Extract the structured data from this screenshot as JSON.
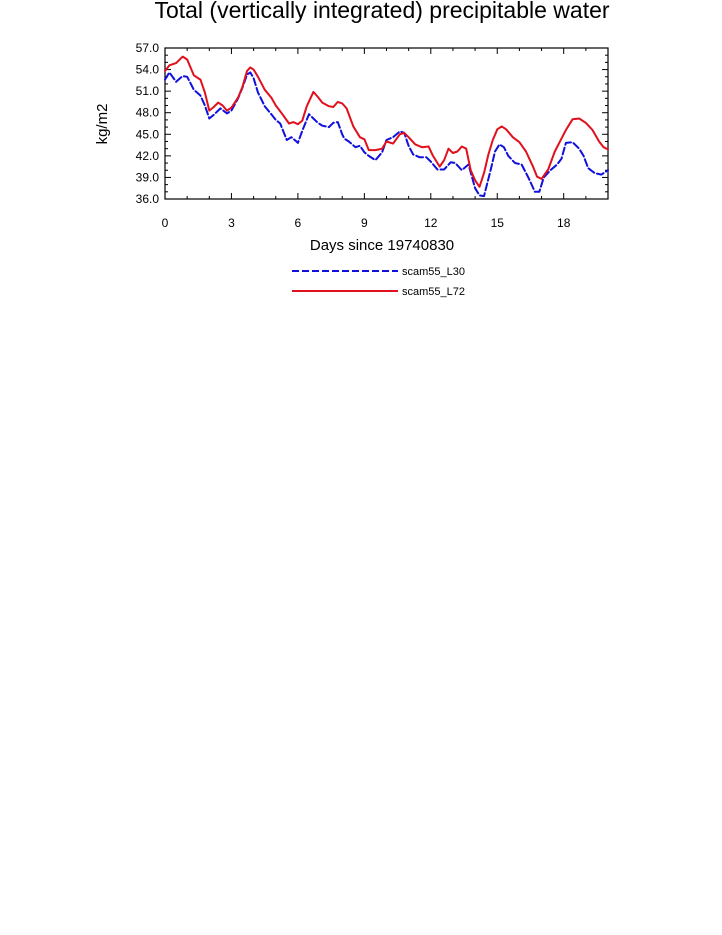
{
  "chart_data": {
    "type": "line",
    "title": "Total (vertically integrated) precipitable water",
    "xlabel": "Days since 19740830",
    "ylabel": "kg/m2",
    "xlim": [
      0,
      20
    ],
    "ylim": [
      36.0,
      57.0
    ],
    "x_ticks": [
      0,
      3,
      6,
      9,
      12,
      15,
      18
    ],
    "x_tick_labels": [
      "0",
      "3",
      "6",
      "9",
      "12",
      "15",
      "18"
    ],
    "y_ticks": [
      36.0,
      39.0,
      42.0,
      45.0,
      48.0,
      51.0,
      54.0,
      57.0
    ],
    "y_tick_labels": [
      "36.0",
      "39.0",
      "42.0",
      "45.0",
      "48.0",
      "51.0",
      "54.0",
      "57.0"
    ],
    "grid": false,
    "legend_position": "bottom-center",
    "series": [
      {
        "name": "scam55_L30",
        "color": "#1010dd",
        "dash": "dashed",
        "x": [
          0,
          0.2,
          0.5,
          0.8,
          1.0,
          1.3,
          1.6,
          1.8,
          2.0,
          2.2,
          2.5,
          2.8,
          3.0,
          3.3,
          3.5,
          3.7,
          3.85,
          4.0,
          4.2,
          4.5,
          4.8,
          5.0,
          5.2,
          5.5,
          5.7,
          5.9,
          6.0,
          6.2,
          6.5,
          6.7,
          6.9,
          7.1,
          7.4,
          7.6,
          7.8,
          8.0,
          8.1,
          8.3,
          8.6,
          8.8,
          9.0,
          9.2,
          9.5,
          9.8,
          10.0,
          10.3,
          10.6,
          10.8,
          11.0,
          11.2,
          11.5,
          11.8,
          12.0,
          12.3,
          12.6,
          12.9,
          13.1,
          13.4,
          13.7,
          14.0,
          14.2,
          14.4,
          14.7,
          14.9,
          15.1,
          15.3,
          15.5,
          15.8,
          16.1,
          16.4,
          16.7,
          16.9,
          17.1,
          17.4,
          17.7,
          17.9,
          18.1,
          18.4,
          18.7,
          18.9,
          19.1,
          19.4,
          19.7,
          20.0
        ],
        "y": [
          52.6,
          53.6,
          52.3,
          53.1,
          53.0,
          51.2,
          50.4,
          49.0,
          47.2,
          47.7,
          48.6,
          47.9,
          48.3,
          50.0,
          51.5,
          53.3,
          53.6,
          52.8,
          50.8,
          48.9,
          47.8,
          47.0,
          46.5,
          44.2,
          44.6,
          44.1,
          43.8,
          45.5,
          47.8,
          47.2,
          46.6,
          46.2,
          46.0,
          46.6,
          46.7,
          45.0,
          44.4,
          44.0,
          43.2,
          43.4,
          42.5,
          42.0,
          41.4,
          42.5,
          44.2,
          44.6,
          45.4,
          45.2,
          43.4,
          42.2,
          41.8,
          41.8,
          41.2,
          40.1,
          40.1,
          41.1,
          41.0,
          40.0,
          40.8,
          37.5,
          36.5,
          36.4,
          40.0,
          42.6,
          43.6,
          43.2,
          42.0,
          41.0,
          40.8,
          39.0,
          37.0,
          37.0,
          39.0,
          40.0,
          40.8,
          41.6,
          43.8,
          43.9,
          43.0,
          42.0,
          40.3,
          39.6,
          39.4,
          40.0
        ]
      },
      {
        "name": "scam55_L72",
        "color": "#e0101c",
        "dash": "solid",
        "x": [
          0,
          0.2,
          0.5,
          0.8,
          1.0,
          1.3,
          1.6,
          1.8,
          2.0,
          2.2,
          2.4,
          2.6,
          2.8,
          3.0,
          3.3,
          3.5,
          3.7,
          3.85,
          4.0,
          4.2,
          4.5,
          4.8,
          5.0,
          5.3,
          5.6,
          5.8,
          6.0,
          6.2,
          6.4,
          6.7,
          6.9,
          7.1,
          7.4,
          7.6,
          7.8,
          8.0,
          8.2,
          8.5,
          8.8,
          9.0,
          9.2,
          9.5,
          9.8,
          10.0,
          10.3,
          10.6,
          10.8,
          11.0,
          11.3,
          11.6,
          11.9,
          12.1,
          12.4,
          12.6,
          12.8,
          13.0,
          13.2,
          13.4,
          13.6,
          13.8,
          14.0,
          14.2,
          14.4,
          14.6,
          14.8,
          15.0,
          15.2,
          15.4,
          15.7,
          16.0,
          16.3,
          16.6,
          16.8,
          17.0,
          17.3,
          17.6,
          17.9,
          18.1,
          18.4,
          18.7,
          19.0,
          19.3,
          19.6,
          19.8,
          20.0
        ],
        "y": [
          53.8,
          54.6,
          54.9,
          55.8,
          55.4,
          53.2,
          52.6,
          50.8,
          48.3,
          48.8,
          49.4,
          49.0,
          48.3,
          48.7,
          50.1,
          51.6,
          53.8,
          54.3,
          54.0,
          53.0,
          51.2,
          50.1,
          49.0,
          47.8,
          46.5,
          46.7,
          46.4,
          46.9,
          48.9,
          50.9,
          50.2,
          49.4,
          48.9,
          48.8,
          49.5,
          49.3,
          48.6,
          46.1,
          44.6,
          44.3,
          42.8,
          42.8,
          43.0,
          44.0,
          43.7,
          45.0,
          45.2,
          44.6,
          43.6,
          43.2,
          43.3,
          42.0,
          40.5,
          41.4,
          43.0,
          42.4,
          42.6,
          43.3,
          43.0,
          40.0,
          38.6,
          37.7,
          39.6,
          42.2,
          44.2,
          45.7,
          46.1,
          45.7,
          44.6,
          43.9,
          42.6,
          40.6,
          39.1,
          38.8,
          40.1,
          42.6,
          44.4,
          45.6,
          47.1,
          47.2,
          46.6,
          45.6,
          44.0,
          43.2,
          42.9
        ]
      }
    ]
  }
}
